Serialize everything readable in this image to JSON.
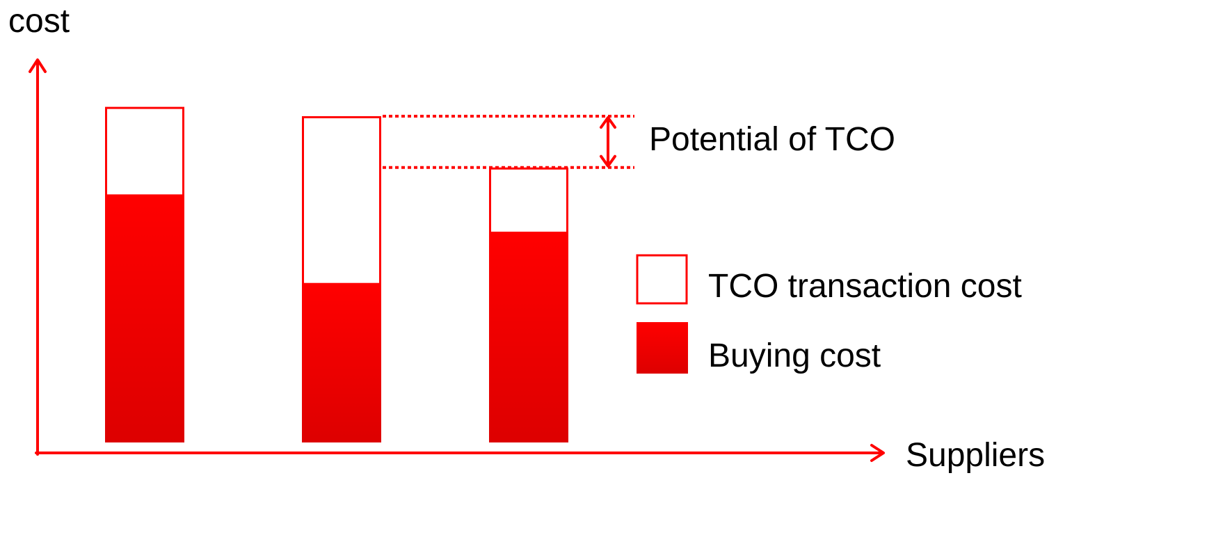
{
  "colors": {
    "accent": "#ff0000",
    "fill_top": "#ff0000",
    "fill_bottom": "#dd0000",
    "text": "#000000",
    "background": "#ffffff"
  },
  "chart_data": {
    "type": "bar",
    "stacked": true,
    "ylabel": "cost",
    "xlabel": "Suppliers",
    "tick_labels": false,
    "grid": false,
    "legend_position": "right",
    "ylim": [
      0,
      100
    ],
    "series": [
      {
        "name": "Buying cost",
        "style": "filled",
        "values": [
          53,
          34,
          45
        ]
      },
      {
        "name": "TCO transaction cost",
        "style": "outline",
        "values": [
          19,
          36,
          14
        ]
      }
    ],
    "annotation": {
      "text": "Potential of TCO",
      "between_totals": [
        1,
        2
      ]
    }
  }
}
